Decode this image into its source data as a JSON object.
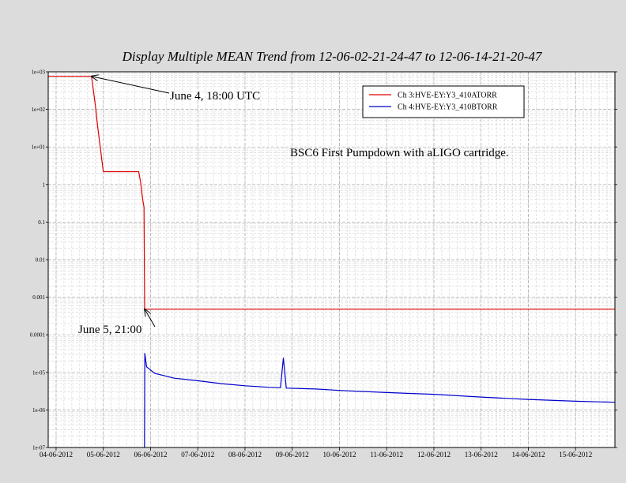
{
  "chart_data": {
    "type": "line",
    "title": "Display Multiple MEAN Trend from 12-06-02-21-24-47 to 12-06-14-21-20-47",
    "xlabel": "",
    "ylabel": "",
    "y_scale": "log",
    "ylim": [
      1e-07,
      1000
    ],
    "xlim": [
      "2012-06-03T20:00",
      "2012-06-15T20:00"
    ],
    "grid": true,
    "y_ticks": [
      {
        "value": 1000,
        "label": "1e+03"
      },
      {
        "value": 100,
        "label": "1e+02"
      },
      {
        "value": 10,
        "label": "1e+01"
      },
      {
        "value": 1,
        "label": "1"
      },
      {
        "value": 0.1,
        "label": "0.1"
      },
      {
        "value": 0.01,
        "label": "0.01"
      },
      {
        "value": 0.001,
        "label": "0.001"
      },
      {
        "value": 0.0001,
        "label": "0.0001"
      },
      {
        "value": 1e-05,
        "label": "1e-05"
      },
      {
        "value": 1e-06,
        "label": "1e-06"
      },
      {
        "value": 1e-07,
        "label": "1e-07"
      }
    ],
    "x_ticks": [
      {
        "value": "2012-06-04",
        "label": "04-06-2012"
      },
      {
        "value": "2012-06-05",
        "label": "05-06-2012"
      },
      {
        "value": "2012-06-06",
        "label": "06-06-2012"
      },
      {
        "value": "2012-06-07",
        "label": "07-06-2012"
      },
      {
        "value": "2012-06-08",
        "label": "08-06-2012"
      },
      {
        "value": "2012-06-09",
        "label": "09-06-2012"
      },
      {
        "value": "2012-06-10",
        "label": "10-06-2012"
      },
      {
        "value": "2012-06-11",
        "label": "11-06-2012"
      },
      {
        "value": "2012-06-12",
        "label": "12-06-2012"
      },
      {
        "value": "2012-06-13",
        "label": "13-06-2012"
      },
      {
        "value": "2012-06-14",
        "label": "14-06-2012"
      },
      {
        "value": "2012-06-15",
        "label": "15-06-2012"
      }
    ],
    "legend_position": "top-right",
    "series": [
      {
        "name": "Ch 3:HVE-EY:Y3_410ATORR",
        "color": "#e00000",
        "points": [
          [
            "2012-06-03T20:00",
            760
          ],
          [
            "2012-06-04T18:00",
            760
          ],
          [
            "2012-06-04T20:00",
            120
          ],
          [
            "2012-06-04T21:00",
            40
          ],
          [
            "2012-06-05T00:00",
            2.2
          ],
          [
            "2012-06-05T18:00",
            2.2
          ],
          [
            "2012-06-05T19:00",
            1.1
          ],
          [
            "2012-06-05T20:00",
            0.4
          ],
          [
            "2012-06-05T20:40",
            0.25
          ],
          [
            "2012-06-05T21:00",
            0.00048
          ],
          [
            "2012-06-15T20:00",
            0.00048
          ]
        ]
      },
      {
        "name": "Ch 4:HVE-EY:Y3_410BTORR",
        "color": "#0000cc",
        "points": [
          [
            "2012-06-05T20:55",
            1e-07
          ],
          [
            "2012-06-05T21:00",
            1.2e-06
          ],
          [
            "2012-06-05T21:05",
            3.2e-05
          ],
          [
            "2012-06-05T22:00",
            1.4e-05
          ],
          [
            "2012-06-06T02:00",
            9.5e-06
          ],
          [
            "2012-06-06T12:00",
            7e-06
          ],
          [
            "2012-06-07T00:00",
            6e-06
          ],
          [
            "2012-06-07T12:00",
            5e-06
          ],
          [
            "2012-06-08T00:00",
            4.4e-06
          ],
          [
            "2012-06-08T12:00",
            4e-06
          ],
          [
            "2012-06-08T18:00",
            3.9e-06
          ],
          [
            "2012-06-08T19:30",
            2.4e-05
          ],
          [
            "2012-06-08T21:00",
            3.8e-06
          ],
          [
            "2012-06-09T12:00",
            3.6e-06
          ],
          [
            "2012-06-10T00:00",
            3.3e-06
          ],
          [
            "2012-06-11T00:00",
            2.9e-06
          ],
          [
            "2012-06-12T00:00",
            2.6e-06
          ],
          [
            "2012-06-13T00:00",
            2.2e-06
          ],
          [
            "2012-06-14T00:00",
            1.9e-06
          ],
          [
            "2012-06-15T00:00",
            1.7e-06
          ],
          [
            "2012-06-15T20:00",
            1.6e-06
          ]
        ]
      }
    ],
    "annotations": [
      {
        "text": "June 4, 18:00 UTC",
        "target": [
          "2012-06-04T18:00",
          760
        ]
      },
      {
        "text": "June 5, 21:00",
        "target": [
          "2012-06-05T21:00",
          0.00048
        ]
      }
    ],
    "note": "BSC6 First Pumpdown with aLIGO cartridge."
  }
}
